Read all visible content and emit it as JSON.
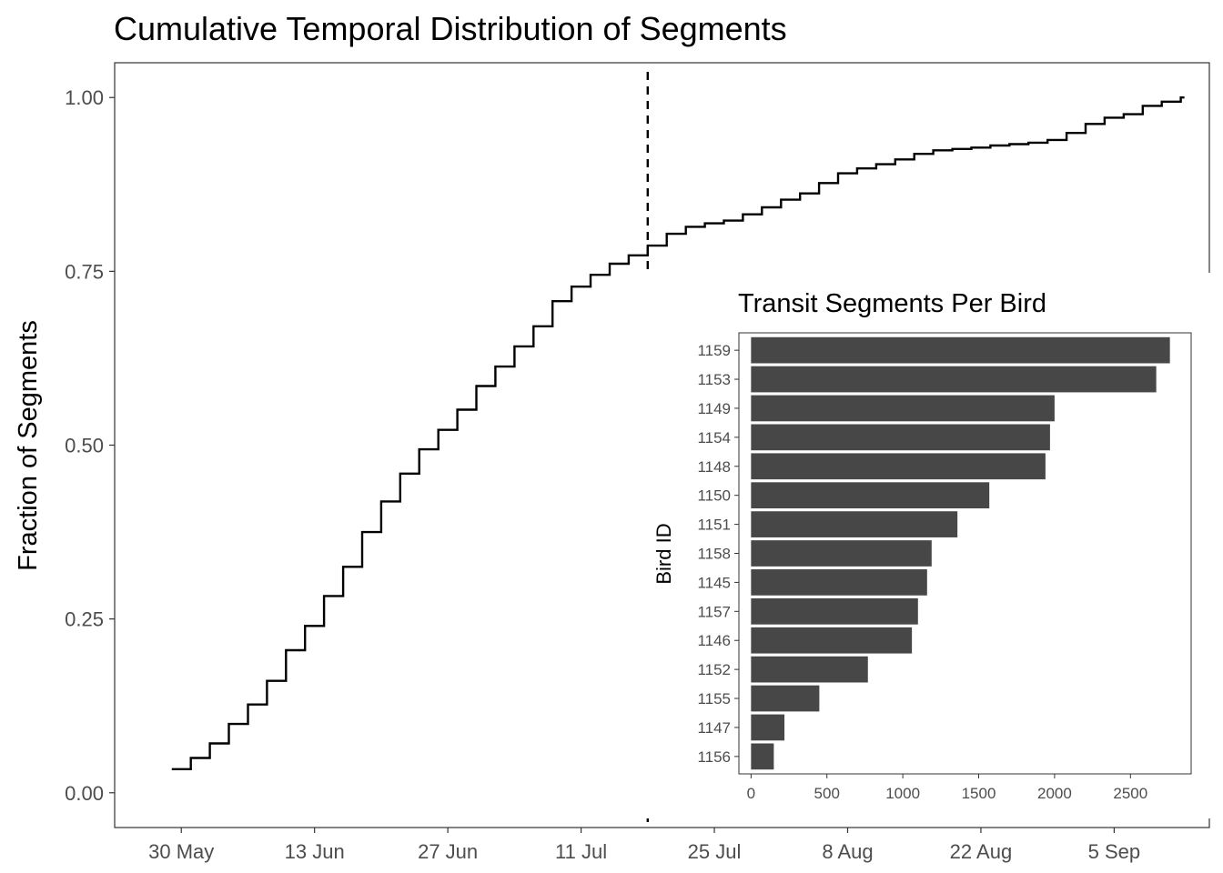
{
  "chart_data": [
    {
      "type": "line",
      "style": "step",
      "title": "Cumulative Temporal Distribution of Segments",
      "xlabel": "",
      "ylabel": "Fraction of Segments",
      "x_tick_labels": [
        "30 May",
        "13 Jun",
        "27 Jun",
        "11 Jul",
        "25 Jul",
        "8 Aug",
        "22 Aug",
        "5 Sep"
      ],
      "x_tick_dates": [
        "2013-05-30",
        "2013-06-13",
        "2013-06-27",
        "2013-07-11",
        "2013-07-25",
        "2013-08-08",
        "2013-08-22",
        "2013-09-05"
      ],
      "xlim": [
        "2013-05-23",
        "2013-09-15"
      ],
      "ylim": [
        -0.05,
        1.05
      ],
      "y_ticks": [
        "0.00",
        "0.25",
        "0.50",
        "0.75",
        "1.00"
      ],
      "vertical_line": {
        "date": "2013-07-18",
        "style": "dashed"
      },
      "grid": false,
      "series": [
        {
          "x": [
            "2013-05-29",
            "2013-05-31",
            "2013-06-02",
            "2013-06-04",
            "2013-06-06",
            "2013-06-08",
            "2013-06-10",
            "2013-06-12",
            "2013-06-14",
            "2013-06-16",
            "2013-06-18",
            "2013-06-20",
            "2013-06-22",
            "2013-06-24",
            "2013-06-26",
            "2013-06-28",
            "2013-06-30",
            "2013-07-02",
            "2013-07-04",
            "2013-07-06",
            "2013-07-08",
            "2013-07-10",
            "2013-07-12",
            "2013-07-14",
            "2013-07-16",
            "2013-07-18",
            "2013-07-20",
            "2013-07-22",
            "2013-07-24",
            "2013-07-26",
            "2013-07-28",
            "2013-07-30",
            "2013-08-01",
            "2013-08-03",
            "2013-08-05",
            "2013-08-07",
            "2013-08-09",
            "2013-08-11",
            "2013-08-13",
            "2013-08-15",
            "2013-08-17",
            "2013-08-19",
            "2013-08-21",
            "2013-08-23",
            "2013-08-25",
            "2013-08-27",
            "2013-08-29",
            "2013-08-31",
            "2013-09-02",
            "2013-09-04",
            "2013-09-06",
            "2013-09-08",
            "2013-09-10"
          ],
          "y": [
            0.034,
            0.05,
            0.071,
            0.099,
            0.127,
            0.161,
            0.205,
            0.24,
            0.283,
            0.325,
            0.375,
            0.419,
            0.459,
            0.494,
            0.522,
            0.551,
            0.585,
            0.613,
            0.642,
            0.671,
            0.707,
            0.728,
            0.745,
            0.761,
            0.773,
            0.787,
            0.804,
            0.814,
            0.819,
            0.823,
            0.832,
            0.842,
            0.853,
            0.862,
            0.877,
            0.891,
            0.898,
            0.904,
            0.911,
            0.919,
            0.924,
            0.926,
            0.928,
            0.931,
            0.933,
            0.935,
            0.939,
            0.949,
            0.962,
            0.971,
            0.976,
            0.988,
            0.994
          ]
        }
      ],
      "final_point": {
        "x": "2013-09-12",
        "y": 1.0
      }
    },
    {
      "type": "bar",
      "orientation": "horizontal",
      "title": "Transit Segments Per Bird",
      "xlabel": "",
      "ylabel": "Bird ID",
      "categories": [
        "1159",
        "1153",
        "1149",
        "1154",
        "1148",
        "1150",
        "1151",
        "1158",
        "1145",
        "1157",
        "1146",
        "1152",
        "1155",
        "1147",
        "1156"
      ],
      "values": [
        2760,
        2670,
        2000,
        1970,
        1940,
        1570,
        1360,
        1190,
        1160,
        1100,
        1060,
        770,
        450,
        220,
        150
      ],
      "xlim": [
        -80,
        2900
      ],
      "x_ticks": [
        "0",
        "500",
        "1000",
        "1500",
        "2000",
        "2500"
      ],
      "bar_color": "#474747",
      "grid": false
    }
  ]
}
